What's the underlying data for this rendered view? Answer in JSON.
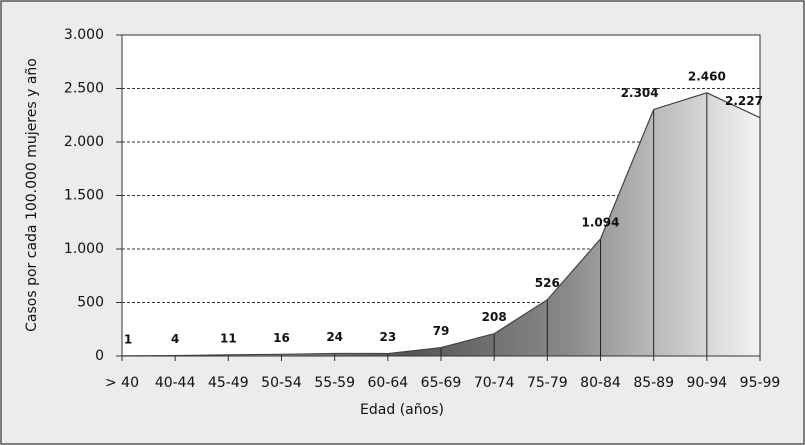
{
  "chart_data": {
    "type": "area",
    "x_label": "Edad (años)",
    "y_label": "Casos por cada 100.000 mujeres y año",
    "categories": [
      "> 40",
      "40-44",
      "45-49",
      "50-54",
      "55-59",
      "60-64",
      "65-69",
      "70-74",
      "75-79",
      "80-84",
      "85-89",
      "90-94",
      "95-99"
    ],
    "values": [
      1,
      4,
      11,
      16,
      24,
      23,
      79,
      208,
      526,
      1094,
      2304,
      2460,
      2227
    ],
    "value_labels": [
      "1",
      "4",
      "11",
      "16",
      "24",
      "23",
      "79",
      "208",
      "526",
      "1.094",
      "2.304",
      "2.460",
      "2.227"
    ],
    "ylim": [
      0,
      3000
    ],
    "yticks": [
      0,
      500,
      {
        "value": 1000,
        "label": "1.000"
      },
      {
        "value": 1500,
        "label": "1.500"
      },
      {
        "value": 2000,
        "label": "2.000"
      },
      {
        "value": 2500,
        "label": "2.500"
      },
      {
        "value": 3000,
        "label": "3.000"
      }
    ],
    "grid": true,
    "color": "#444444"
  }
}
